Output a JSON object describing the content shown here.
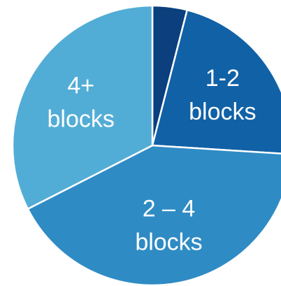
{
  "chart_data": {
    "type": "pie",
    "title": "",
    "start_angle_deg": 0,
    "slices": [
      {
        "label_lines": [],
        "value": 4.0,
        "color": "#0b3f7e"
      },
      {
        "label_lines": [
          "1-2",
          "blocks"
        ],
        "value": 22.0,
        "color": "#1161a6"
      },
      {
        "label_lines": [
          "2 – 4",
          "blocks"
        ],
        "value": 41.5,
        "color": "#2f8bc4"
      },
      {
        "label_lines": [
          "4+",
          "blocks"
        ],
        "value": 32.5,
        "color": "#52add6"
      }
    ],
    "unit": "%"
  }
}
